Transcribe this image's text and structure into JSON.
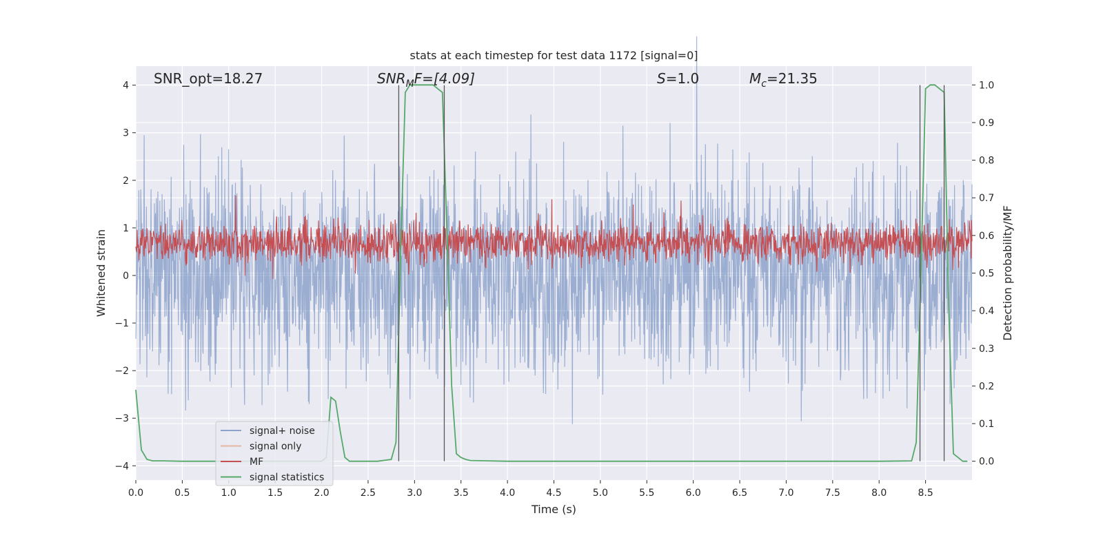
{
  "chart_data": {
    "type": "line",
    "title": "stats at each timestep for test data 1172 [signal=0]",
    "xlabel": "Time (s)",
    "ylabel": "Whitened strain",
    "y2label": "Detection probability/MF",
    "xlim": [
      0.0,
      9.0
    ],
    "ylim": [
      -4.3,
      4.4
    ],
    "y2lim": [
      -0.05,
      1.05
    ],
    "xticks": [
      0.0,
      0.5,
      1.0,
      1.5,
      2.0,
      2.5,
      3.0,
      3.5,
      4.0,
      4.5,
      5.0,
      5.5,
      6.0,
      6.5,
      7.0,
      7.5,
      8.0,
      8.5
    ],
    "xtick_labels": [
      "0.0",
      "0.5",
      "1.0",
      "1.5",
      "2.0",
      "2.5",
      "3.0",
      "3.5",
      "4.0",
      "4.5",
      "5.0",
      "5.5",
      "6.0",
      "6.5",
      "7.0",
      "7.5",
      "8.0",
      "8.5"
    ],
    "yticks": [
      -4,
      -3,
      -2,
      -1,
      0,
      1,
      2,
      3,
      4
    ],
    "ytick_labels": [
      "−4",
      "−3",
      "−2",
      "−1",
      "0",
      "1",
      "2",
      "3",
      "4"
    ],
    "y2ticks": [
      0.0,
      0.1,
      0.2,
      0.3,
      0.4,
      0.5,
      0.6,
      0.7,
      0.8,
      0.9,
      1.0
    ],
    "y2tick_labels": [
      "0.0",
      "0.1",
      "0.2",
      "0.3",
      "0.4",
      "0.5",
      "0.6",
      "0.7",
      "0.8",
      "0.9",
      "1.0"
    ],
    "grid": true,
    "legend_position": "lower-left",
    "annotations": {
      "snr_opt": "SNR_opt=18.27",
      "snr_mf_base": "SNR",
      "snr_mf_sub": "M",
      "snr_mf_rest": "F=[4.09]",
      "s_var": "S",
      "s_val": "=1.0",
      "mc_var": "M",
      "mc_sub": "c",
      "mc_val": "=21.35"
    },
    "series": [
      {
        "name": "signal+ noise",
        "color": "#4c72b0",
        "axis": "left",
        "kind": "noise",
        "amplitude_range": [
          -3.6,
          4.0
        ]
      },
      {
        "name": "signal only",
        "color": "#dd8452",
        "axis": "left",
        "kind": "flat",
        "values": []
      },
      {
        "name": "MF",
        "color": "#c44e52",
        "axis": "right",
        "kind": "noise",
        "amplitude_range": [
          0.5,
          0.66
        ]
      },
      {
        "name": "signal statistics",
        "color": "#55a868",
        "axis": "right",
        "x": [
          0.0,
          0.06,
          0.12,
          0.18,
          0.3,
          0.5,
          0.8,
          1.0,
          1.5,
          2.0,
          2.05,
          2.1,
          2.15,
          2.2,
          2.25,
          2.3,
          2.4,
          2.6,
          2.75,
          2.8,
          2.85,
          2.9,
          2.95,
          3.0,
          3.1,
          3.2,
          3.25,
          3.3,
          3.35,
          3.4,
          3.45,
          3.5,
          3.55,
          3.6,
          3.8,
          4.0,
          5.0,
          6.0,
          7.0,
          8.0,
          8.35,
          8.4,
          8.45,
          8.5,
          8.55,
          8.6,
          8.65,
          8.7,
          8.75,
          8.8,
          8.85,
          8.9,
          8.95
        ],
        "y": [
          0.19,
          0.03,
          0.005,
          0.001,
          0.001,
          0.0,
          0.0,
          0.0,
          0.0,
          0.0,
          0.01,
          0.17,
          0.16,
          0.08,
          0.01,
          0.0,
          0.0,
          0.0,
          0.005,
          0.05,
          0.55,
          0.98,
          1.0,
          1.0,
          1.0,
          1.0,
          0.99,
          0.98,
          0.6,
          0.2,
          0.02,
          0.01,
          0.005,
          0.002,
          0.001,
          0.0,
          0.0,
          0.0,
          0.0,
          0.0,
          0.001,
          0.05,
          0.5,
          0.99,
          1.0,
          1.0,
          0.99,
          0.98,
          0.4,
          0.02,
          0.01,
          0.0,
          0.0
        ]
      }
    ],
    "vertical_lines_x": [
      2.83,
      3.32,
      8.44,
      8.7
    ]
  }
}
